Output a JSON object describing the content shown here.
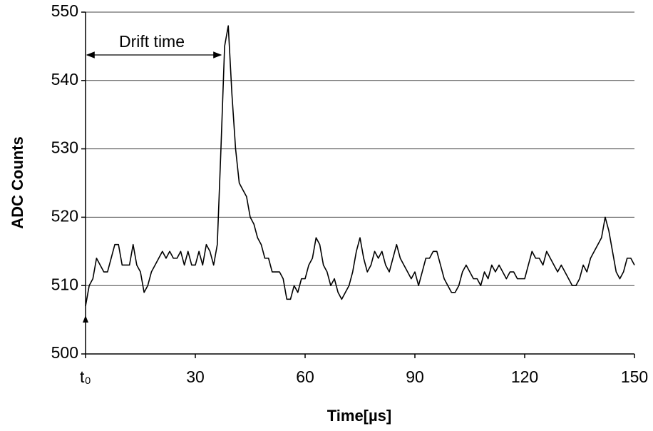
{
  "chart_data": {
    "type": "line",
    "x_label": "Time[µs]",
    "y_label": "ADC Counts",
    "annotation": "Drift time",
    "color": "#000000",
    "grid": true,
    "xlim": [
      0,
      150
    ],
    "xticks": [
      {
        "value": 0,
        "label": "t₀"
      },
      30,
      60,
      90,
      120,
      150
    ],
    "ylim": [
      500,
      550
    ],
    "yticks": [
      500,
      510,
      520,
      530,
      540,
      550
    ],
    "x": [
      0,
      1,
      2,
      3,
      4,
      5,
      6,
      7,
      8,
      9,
      10,
      11,
      12,
      13,
      14,
      15,
      16,
      17,
      18,
      19,
      20,
      21,
      22,
      23,
      24,
      25,
      26,
      27,
      28,
      29,
      30,
      31,
      32,
      33,
      34,
      35,
      36,
      37,
      38,
      39,
      40,
      41,
      42,
      43,
      44,
      45,
      46,
      47,
      48,
      49,
      50,
      51,
      52,
      53,
      54,
      55,
      56,
      57,
      58,
      59,
      60,
      61,
      62,
      63,
      64,
      65,
      66,
      67,
      68,
      69,
      70,
      71,
      72,
      73,
      74,
      75,
      76,
      77,
      78,
      79,
      80,
      81,
      82,
      83,
      84,
      85,
      86,
      87,
      88,
      89,
      90,
      91,
      92,
      93,
      94,
      95,
      96,
      97,
      98,
      99,
      100,
      101,
      102,
      103,
      104,
      105,
      106,
      107,
      108,
      109,
      110,
      111,
      112,
      113,
      114,
      115,
      116,
      117,
      118,
      119,
      120,
      121,
      122,
      123,
      124,
      125,
      126,
      127,
      128,
      129,
      130,
      131,
      132,
      133,
      134,
      135,
      136,
      137,
      138,
      139,
      140,
      141,
      142,
      143,
      144,
      145,
      146,
      147,
      148,
      149,
      150
    ],
    "values": [
      507,
      510,
      511,
      514,
      513,
      512,
      512,
      514,
      516,
      516,
      513,
      513,
      513,
      516,
      513,
      512,
      509,
      510,
      512,
      513,
      514,
      515,
      514,
      515,
      514,
      514,
      515,
      513,
      515,
      513,
      513,
      515,
      513,
      516,
      515,
      513,
      516,
      530,
      545,
      548,
      538,
      530,
      525,
      524,
      523,
      520,
      519,
      517,
      516,
      514,
      514,
      512,
      512,
      512,
      511,
      508,
      508,
      510,
      509,
      511,
      511,
      513,
      514,
      517,
      516,
      513,
      512,
      510,
      511,
      509,
      508,
      509,
      510,
      512,
      515,
      517,
      514,
      512,
      513,
      515,
      514,
      515,
      513,
      512,
      514,
      516,
      514,
      513,
      512,
      511,
      512,
      510,
      512,
      514,
      514,
      515,
      515,
      513,
      511,
      510,
      509,
      509,
      510,
      512,
      513,
      512,
      511,
      511,
      510,
      512,
      511,
      513,
      512,
      513,
      512,
      511,
      512,
      512,
      511,
      511,
      511,
      513,
      515,
      514,
      514,
      513,
      515,
      514,
      513,
      512,
      513,
      512,
      511,
      510,
      510,
      511,
      513,
      512,
      514,
      515,
      516,
      517,
      520,
      518,
      515,
      512,
      511,
      512,
      514,
      514,
      513
    ]
  }
}
